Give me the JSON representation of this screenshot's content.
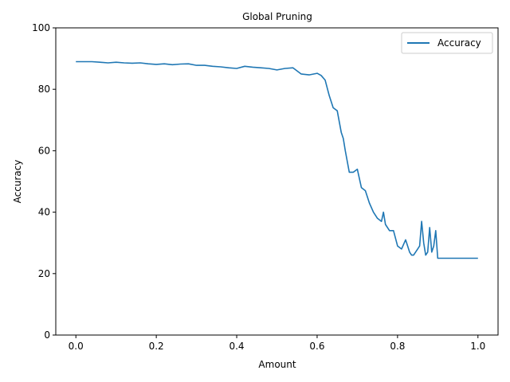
{
  "chart_data": {
    "type": "line",
    "title": "Global Pruning",
    "xlabel": "Amount",
    "ylabel": "Accuracy",
    "xlim": [
      -0.05,
      1.05
    ],
    "ylim": [
      0,
      100
    ],
    "xticks": [
      0.0,
      0.2,
      0.4,
      0.6,
      0.8,
      1.0
    ],
    "xtick_labels": [
      "0.0",
      "0.2",
      "0.4",
      "0.6",
      "0.8",
      "1.0"
    ],
    "yticks": [
      0,
      20,
      40,
      60,
      80,
      100
    ],
    "ytick_labels": [
      "0",
      "20",
      "40",
      "60",
      "80",
      "100"
    ],
    "grid": false,
    "legend_position": "top-right",
    "series": [
      {
        "name": "Accuracy",
        "color": "#1f77b4",
        "x": [
          0.0,
          0.02,
          0.04,
          0.06,
          0.08,
          0.1,
          0.12,
          0.14,
          0.16,
          0.18,
          0.2,
          0.22,
          0.24,
          0.26,
          0.28,
          0.3,
          0.32,
          0.34,
          0.36,
          0.38,
          0.4,
          0.42,
          0.44,
          0.46,
          0.48,
          0.5,
          0.52,
          0.54,
          0.56,
          0.58,
          0.6,
          0.61,
          0.62,
          0.63,
          0.64,
          0.65,
          0.66,
          0.665,
          0.67,
          0.68,
          0.69,
          0.7,
          0.71,
          0.72,
          0.73,
          0.74,
          0.75,
          0.76,
          0.765,
          0.77,
          0.78,
          0.79,
          0.8,
          0.81,
          0.82,
          0.83,
          0.835,
          0.84,
          0.85,
          0.855,
          0.86,
          0.865,
          0.87,
          0.875,
          0.88,
          0.885,
          0.89,
          0.895,
          0.9,
          0.92,
          0.94,
          0.96,
          0.98,
          1.0
        ],
        "values": [
          89,
          89,
          89,
          88.8,
          88.6,
          88.8,
          88.6,
          88.5,
          88.6,
          88.3,
          88.1,
          88.3,
          88.0,
          88.2,
          88.3,
          87.8,
          87.8,
          87.5,
          87.3,
          87.0,
          86.8,
          87.5,
          87.2,
          87.0,
          86.8,
          86.3,
          86.8,
          87.0,
          85.0,
          84.7,
          85.2,
          84.5,
          83.0,
          78.0,
          74.0,
          73.0,
          66.0,
          64.0,
          60.0,
          53.0,
          53.0,
          54.0,
          48.0,
          47.0,
          43.0,
          40.0,
          38.0,
          37.0,
          40.0,
          36.0,
          34.0,
          34.0,
          29.0,
          28.0,
          31.0,
          27.0,
          26.0,
          26.0,
          28.0,
          29.0,
          37.0,
          30.0,
          26.0,
          27.0,
          35.0,
          27.0,
          29.0,
          34.0,
          25.0,
          25.0,
          25.0,
          25.0,
          25.0,
          25.0
        ]
      }
    ]
  }
}
